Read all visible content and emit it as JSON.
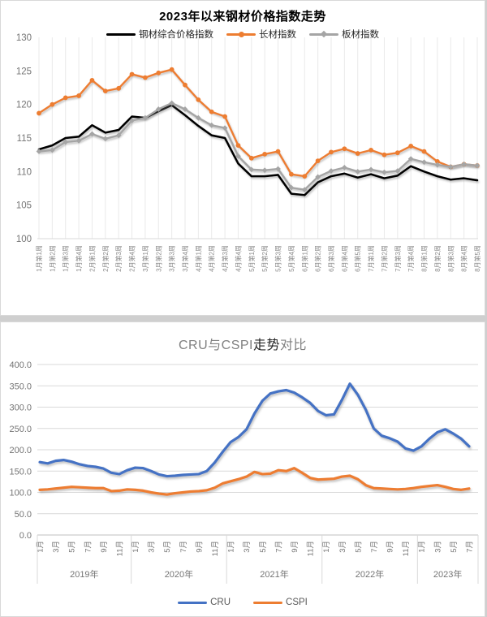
{
  "top_panel": {
    "title": "2023年以来钢材价格指数走势",
    "legend": [
      {
        "label": "钢材综合价格指数",
        "color": "#000000",
        "marker": "line"
      },
      {
        "label": "长材指数",
        "color": "#ED7D31",
        "marker": "circle"
      },
      {
        "label": "板材指数",
        "color": "#A5A5A5",
        "marker": "diamond"
      }
    ]
  },
  "bottom_panel": {
    "title_parts": [
      {
        "text": "CRU与CSPI",
        "color": "#808080"
      },
      {
        "text": "走势",
        "color": "#262626"
      },
      {
        "text": "对比",
        "color": "#808080"
      }
    ],
    "legend": [
      {
        "label": "CRU",
        "color": "#4472C4"
      },
      {
        "label": "CSPI",
        "color": "#ED7D31"
      }
    ]
  },
  "colors": {
    "grid": "#D9D9D9",
    "dropline": "#EAEAEA",
    "axis_text": "#757575",
    "tick_text": "#8C8C8C"
  },
  "chart_data": [
    {
      "type": "line",
      "title": "2023年以来钢材价格指数走势",
      "ylim": [
        100,
        130
      ],
      "ytick_step": 5,
      "ytick_labels": [
        "100",
        "105",
        "110",
        "115",
        "120",
        "125",
        "130"
      ],
      "grid": "vertical-droplines",
      "legend_position": "top",
      "categories": [
        "1月第1周",
        "1月第2周",
        "1月第3周",
        "1月第4周",
        "2月第1周",
        "2月第2周",
        "2月第3周",
        "2月第4周",
        "3月第1周",
        "3月第2周",
        "3月第3周",
        "3月第4周",
        "4月第1周",
        "4月第2周",
        "4月第3周",
        "4月第4周",
        "5月第1周",
        "5月第2周",
        "5月第3周",
        "5月第4周",
        "6月第1周",
        "6月第2周",
        "6月第3周",
        "6月第4周",
        "6月第5周",
        "7月第1周",
        "7月第2周",
        "7月第3周",
        "7月第4周",
        "8月第1周",
        "8月第2周",
        "8月第3周",
        "8月第4周",
        "8月第5周"
      ],
      "series": [
        {
          "name": "钢材综合价格指数",
          "color": "#000000",
          "marker": "none",
          "width": 2.6,
          "values": [
            113.3,
            113.9,
            115.0,
            115.2,
            116.9,
            115.8,
            116.2,
            118.2,
            118.0,
            119.0,
            119.9,
            118.4,
            116.8,
            115.4,
            115.0,
            111.2,
            109.3,
            109.3,
            109.5,
            106.7,
            106.5,
            108.4,
            109.3,
            109.7,
            109.1,
            109.6,
            109.0,
            109.4,
            110.8,
            110.0,
            109.3,
            108.8,
            109.0,
            108.7
          ]
        },
        {
          "name": "长材指数",
          "color": "#ED7D31",
          "marker": "circle",
          "width": 2.4,
          "values": [
            118.7,
            120.0,
            121.0,
            121.3,
            123.6,
            122.0,
            122.4,
            124.5,
            124.0,
            124.7,
            125.2,
            122.9,
            120.7,
            118.9,
            118.2,
            113.9,
            112.0,
            112.6,
            113.0,
            109.6,
            109.3,
            111.6,
            112.9,
            113.4,
            112.7,
            113.2,
            112.5,
            112.8,
            113.8,
            113.0,
            111.5,
            110.7,
            111.1,
            110.9
          ]
        },
        {
          "name": "板材指数",
          "color": "#A5A5A5",
          "marker": "diamond",
          "width": 2.4,
          "values": [
            113.0,
            113.2,
            114.4,
            114.6,
            115.6,
            114.9,
            115.4,
            117.6,
            118.0,
            119.3,
            120.2,
            119.3,
            118.0,
            116.9,
            116.5,
            112.3,
            110.3,
            110.2,
            110.4,
            107.6,
            107.3,
            109.2,
            110.1,
            110.6,
            110.0,
            110.3,
            109.9,
            110.1,
            111.9,
            111.4,
            111.0,
            110.7,
            111.1,
            110.9
          ]
        }
      ]
    },
    {
      "type": "line",
      "title": "CRU与CSPI走势对比",
      "ylim": [
        0,
        400
      ],
      "ytick_step": 50,
      "ytick_labels": [
        "0.0",
        "50.0",
        "100.0",
        "150.0",
        "200.0",
        "250.0",
        "300.0",
        "350.0",
        "400.0"
      ],
      "grid": "horizontal",
      "legend_position": "bottom",
      "year_groups": [
        {
          "label": "2019年",
          "months": 12,
          "tick_labels": [
            "1月",
            "3月",
            "5月",
            "7月",
            "9月",
            "11月"
          ]
        },
        {
          "label": "2020年",
          "months": 12,
          "tick_labels": [
            "1月",
            "3月",
            "5月",
            "7月",
            "9月",
            "11月"
          ]
        },
        {
          "label": "2021年",
          "months": 12,
          "tick_labels": [
            "1月",
            "3月",
            "5月",
            "7月",
            "9月",
            "11月"
          ]
        },
        {
          "label": "2022年",
          "months": 12,
          "tick_labels": [
            "1月",
            "3月",
            "5月",
            "7月",
            "9月",
            "11月"
          ]
        },
        {
          "label": "2023年",
          "months": 7,
          "tick_labels": [
            "1月",
            "3月",
            "5月",
            "7月"
          ]
        }
      ],
      "series": [
        {
          "name": "CRU",
          "color": "#4472C4",
          "width": 3.2,
          "values": [
            171,
            168,
            174,
            176,
            172,
            166,
            162,
            160,
            156,
            146,
            143,
            152,
            158,
            157,
            150,
            142,
            138,
            139,
            141,
            142,
            143,
            150,
            170,
            195,
            218,
            230,
            248,
            285,
            315,
            332,
            337,
            340,
            334,
            323,
            310,
            291,
            281,
            283,
            317,
            355,
            329,
            294,
            250,
            233,
            227,
            219,
            203,
            198,
            208,
            226,
            241,
            248,
            238,
            226,
            208
          ]
        },
        {
          "name": "CSPI",
          "color": "#ED7D31",
          "width": 3.2,
          "values": [
            106,
            107,
            109,
            111,
            113,
            112,
            111,
            110,
            110,
            103,
            104,
            107,
            106,
            104,
            100,
            97,
            95,
            98,
            100,
            102,
            103,
            105,
            111,
            121,
            126,
            131,
            137,
            148,
            143,
            144,
            152,
            150,
            157,
            146,
            134,
            130,
            131,
            132,
            137,
            139,
            131,
            117,
            110,
            109,
            108,
            107,
            108,
            110,
            113,
            115,
            117,
            113,
            108,
            106,
            109
          ]
        }
      ]
    }
  ]
}
